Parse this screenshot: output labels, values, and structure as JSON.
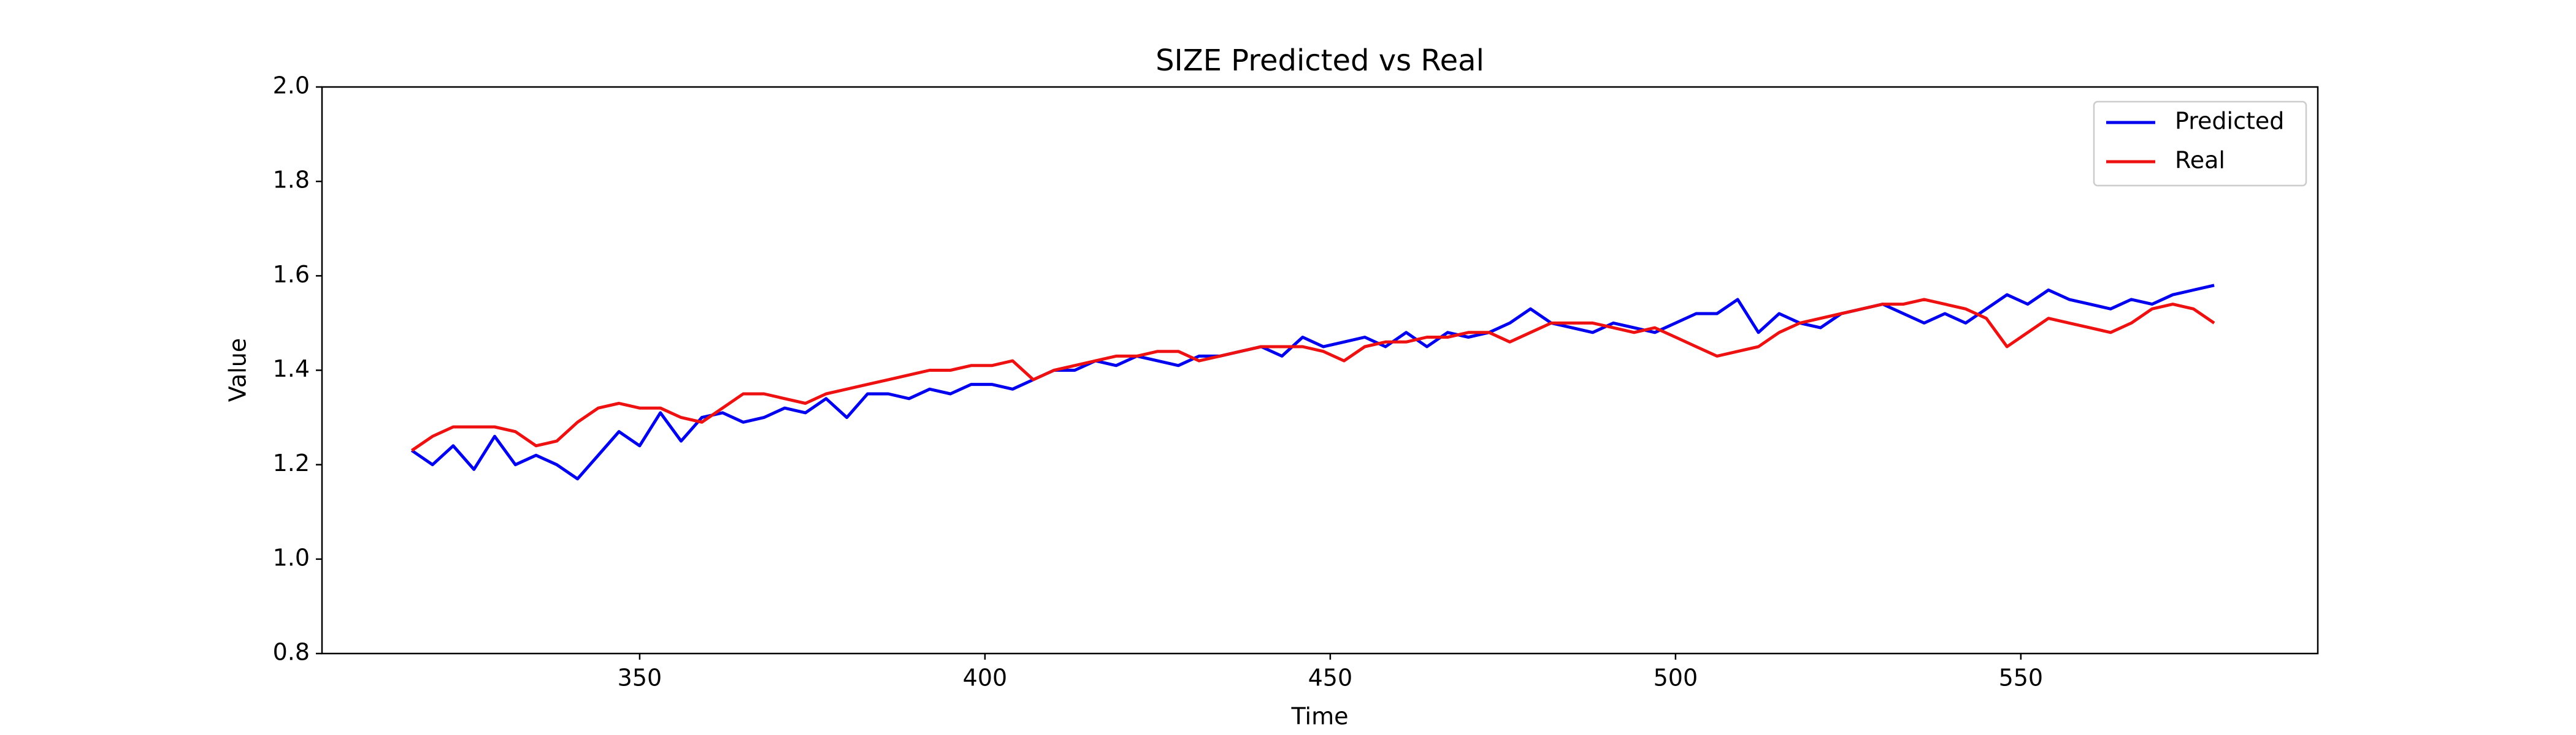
{
  "chart_data": {
    "type": "line",
    "title": "SIZE Predicted vs Real",
    "x_label": "Time",
    "y_label": "Value",
    "x": [
      317,
      320,
      323,
      326,
      329,
      332,
      335,
      338,
      341,
      344,
      347,
      350,
      353,
      356,
      359,
      362,
      365,
      368,
      371,
      374,
      377,
      380,
      383,
      386,
      389,
      392,
      395,
      398,
      401,
      404,
      407,
      410,
      413,
      416,
      419,
      422,
      425,
      428,
      431,
      434,
      437,
      440,
      443,
      446,
      449,
      452,
      455,
      458,
      461,
      464,
      467,
      470,
      473,
      476,
      479,
      482,
      485,
      488,
      491,
      494,
      497,
      500,
      503,
      506,
      509,
      512,
      515,
      518,
      521,
      524,
      527,
      530,
      533,
      536,
      539,
      542,
      545,
      548,
      551,
      554,
      557,
      560,
      563,
      566,
      569,
      572,
      575,
      578
    ],
    "series": [
      {
        "name": "Predicted",
        "color": "#0000ee",
        "values": [
          1.23,
          1.2,
          1.24,
          1.19,
          1.26,
          1.2,
          1.22,
          1.2,
          1.17,
          1.22,
          1.27,
          1.24,
          1.31,
          1.25,
          1.3,
          1.31,
          1.29,
          1.3,
          1.32,
          1.31,
          1.34,
          1.3,
          1.35,
          1.35,
          1.34,
          1.36,
          1.35,
          1.37,
          1.37,
          1.36,
          1.38,
          1.4,
          1.4,
          1.42,
          1.41,
          1.43,
          1.42,
          1.41,
          1.43,
          1.43,
          1.44,
          1.45,
          1.43,
          1.47,
          1.45,
          1.46,
          1.47,
          1.45,
          1.48,
          1.45,
          1.48,
          1.47,
          1.48,
          1.5,
          1.53,
          1.5,
          1.49,
          1.48,
          1.5,
          1.49,
          1.48,
          1.5,
          1.52,
          1.52,
          1.55,
          1.48,
          1.52,
          1.5,
          1.49,
          1.52,
          1.53,
          1.54,
          1.52,
          1.5,
          1.52,
          1.5,
          1.53,
          1.56,
          1.54,
          1.57,
          1.55,
          1.54,
          1.53,
          1.55,
          1.54,
          1.56,
          1.57,
          1.58
        ]
      },
      {
        "name": "Real",
        "color": "#ee1111",
        "values": [
          1.23,
          1.26,
          1.28,
          1.28,
          1.28,
          1.27,
          1.24,
          1.25,
          1.29,
          1.32,
          1.33,
          1.32,
          1.32,
          1.3,
          1.29,
          1.32,
          1.35,
          1.35,
          1.34,
          1.33,
          1.35,
          1.36,
          1.37,
          1.38,
          1.39,
          1.4,
          1.4,
          1.41,
          1.41,
          1.42,
          1.38,
          1.4,
          1.41,
          1.42,
          1.43,
          1.43,
          1.44,
          1.44,
          1.42,
          1.43,
          1.44,
          1.45,
          1.45,
          1.45,
          1.44,
          1.42,
          1.45,
          1.46,
          1.46,
          1.47,
          1.47,
          1.48,
          1.48,
          1.46,
          1.48,
          1.5,
          1.5,
          1.5,
          1.49,
          1.48,
          1.49,
          1.47,
          1.45,
          1.43,
          1.44,
          1.45,
          1.48,
          1.5,
          1.51,
          1.52,
          1.53,
          1.54,
          1.54,
          1.55,
          1.54,
          1.53,
          1.51,
          1.45,
          1.48,
          1.51,
          1.5,
          1.49,
          1.48,
          1.5,
          1.53,
          1.54,
          1.53,
          1.5
        ]
      }
    ],
    "xlim": [
      304,
      593
    ],
    "xticks": [
      350,
      400,
      450,
      500,
      550
    ],
    "ylim": [
      0.8,
      2.0
    ],
    "yticks": [
      0.8,
      {
        "value": 1,
        "label": "1.0"
      },
      1.2,
      1.4,
      1.6,
      1.8,
      {
        "value": 2,
        "label": "2.0"
      }
    ],
    "legend": "upper right"
  }
}
